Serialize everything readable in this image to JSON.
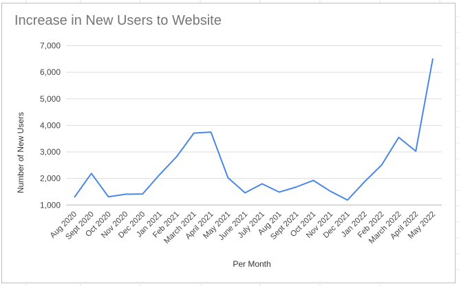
{
  "chart_data": {
    "type": "line",
    "title": "Increase in New Users to Website",
    "xlabel": "Per Month",
    "ylabel": "Number of New Users",
    "ylim": [
      1000,
      7000
    ],
    "yticks": [
      1000,
      2000,
      3000,
      4000,
      5000,
      6000,
      7000
    ],
    "ytick_labels": [
      "1,000",
      "2,000",
      "3,000",
      "4,000",
      "5,000",
      "6,000",
      "7,000"
    ],
    "grid": true,
    "legend": "none",
    "line_color": "#4a86e8",
    "categories": [
      "Aug 2020",
      "Sept 2020",
      "Oct 2020",
      "Nov 2020",
      "Dec 2020",
      "Jan 2021",
      "Feb 2021",
      "March 2021",
      "April 2021",
      "May 2021",
      "June 2021",
      "July 2021",
      "Aug 201",
      "Sept 2021",
      "Oct 2021",
      "Nov 2021",
      "Dec 2021",
      "Jan 2022",
      "Feb 2022",
      "March 2022",
      "April 2022",
      "May 2022"
    ],
    "series": [
      {
        "name": "New Users",
        "values": [
          1290,
          2190,
          1310,
          1410,
          1420,
          2150,
          2830,
          3710,
          3750,
          2030,
          1460,
          1800,
          1490,
          1680,
          1930,
          1520,
          1190,
          1880,
          2510,
          3550,
          3030,
          6520
        ]
      }
    ]
  }
}
